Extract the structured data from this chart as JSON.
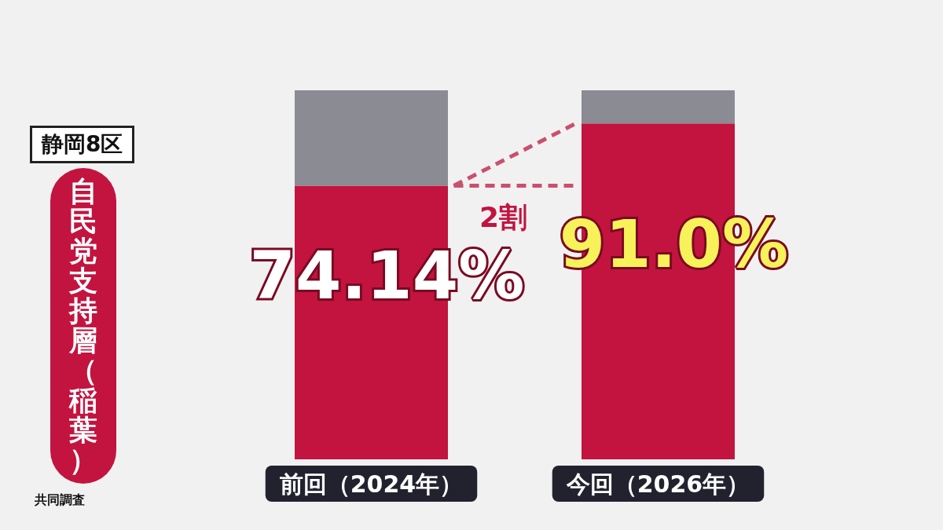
{
  "chart_data": {
    "type": "bar",
    "stacked": true,
    "title": "静岡8区",
    "subtitle": "自民党支持層（稲葉）",
    "categories": [
      "前回（2024年）",
      "今回（2026年）"
    ],
    "series": [
      {
        "color": "#c2143f",
        "values": [
          74.14,
          91.0
        ],
        "value_labels": [
          "74.14%",
          "91.0%"
        ]
      },
      {
        "color": "#8b8b93",
        "values": [
          25.86,
          9.0
        ]
      }
    ],
    "ylim": [
      0,
      100
    ],
    "tick_labels": "x",
    "annotations": [
      "2割",
      "共同調査"
    ]
  }
}
